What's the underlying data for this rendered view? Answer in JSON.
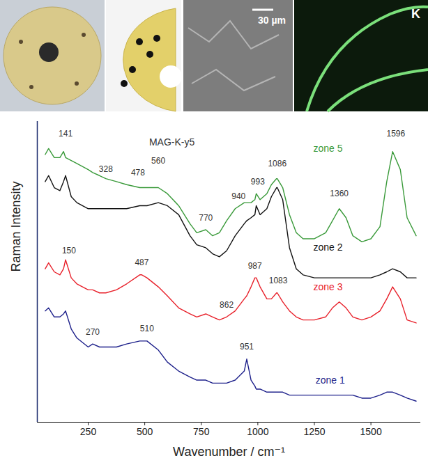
{
  "chart_data": {
    "type": "line",
    "x_label": "Wavenumber / cm⁻¹",
    "y_label": "Raman Intensity",
    "xlim": [
      25,
      1720
    ],
    "xticks": [
      250,
      500,
      750,
      1000,
      1250,
      1500
    ],
    "ylim": [
      0,
      100
    ],
    "tick_labels": "x",
    "grid": false,
    "image_labels": [
      "30 µm",
      "K"
    ],
    "x": [
      60,
      75,
      100,
      125,
      141,
      150,
      175,
      200,
      250,
      270,
      300,
      328,
      375,
      420,
      478,
      487,
      510,
      560,
      600,
      650,
      700,
      730,
      770,
      800,
      830,
      862,
      900,
      940,
      951,
      970,
      987,
      993,
      1010,
      1040,
      1060,
      1083,
      1086,
      1110,
      1140,
      1170,
      1200,
      1250,
      1300,
      1330,
      1360,
      1390,
      1420,
      1460,
      1500,
      1540,
      1570,
      1596,
      1630,
      1660,
      1700
    ],
    "series": [
      {
        "name": "zone 5",
        "color": "#3a9a3a",
        "values": [
          89,
          91,
          88,
          88,
          90,
          88,
          87,
          86,
          84,
          83,
          82,
          81,
          80,
          79,
          78,
          78,
          78,
          78,
          76,
          72,
          66,
          63,
          64,
          62,
          63,
          67,
          71,
          73,
          73,
          73,
          74,
          76,
          74,
          76,
          79,
          81,
          81,
          78,
          69,
          63,
          61,
          61,
          63,
          67,
          71,
          68,
          62,
          60,
          61,
          65,
          80,
          90,
          84,
          68,
          62
        ]
      },
      {
        "name": "zone 2",
        "color": "#111111",
        "values": [
          80,
          82,
          78,
          77,
          80,
          82,
          75,
          73,
          71,
          71,
          71,
          71,
          71,
          71,
          72,
          72,
          72,
          73,
          72,
          69,
          62,
          59,
          58,
          56,
          55,
          57,
          62,
          66,
          67,
          68,
          69,
          72,
          69,
          71,
          75,
          78,
          78,
          74,
          58,
          51,
          49,
          48,
          48,
          48,
          48,
          48,
          48,
          48,
          48,
          49,
          50,
          51,
          50,
          48,
          48
        ]
      },
      {
        "name": "zone 3",
        "color": "#e8202a",
        "values": [
          51,
          53,
          50,
          49,
          51,
          54,
          48,
          46,
          44,
          44,
          43,
          43,
          44,
          46,
          49,
          49,
          48,
          45,
          42,
          38,
          36,
          35,
          36,
          35,
          34,
          35,
          37,
          41,
          42,
          45,
          48,
          48,
          45,
          41,
          41,
          43,
          43,
          40,
          37,
          35,
          34,
          34,
          35,
          38,
          40,
          38,
          35,
          34,
          35,
          37,
          41,
          45,
          41,
          34,
          33
        ]
      },
      {
        "name": "zone 1",
        "color": "#1c1f8a",
        "values": [
          37,
          38,
          35,
          35,
          36,
          37,
          31,
          28,
          25,
          26,
          25,
          25,
          25,
          26,
          27,
          27,
          27,
          24,
          20,
          17,
          15,
          14,
          14,
          13,
          13,
          13,
          14,
          17,
          21,
          14,
          12,
          11,
          11,
          10,
          10,
          10,
          10,
          10,
          9,
          9,
          9,
          9,
          9,
          9,
          9,
          9,
          9,
          8,
          8,
          9,
          10,
          10,
          9,
          8,
          7
        ]
      }
    ],
    "annotations": [
      {
        "text": "MAG-K-y5",
        "x": 620,
        "y": 93,
        "color": "#333333"
      },
      {
        "text": "zone 5",
        "x": 1310,
        "y": 91,
        "color": "#3a9a3a"
      },
      {
        "text": "141",
        "x": 150,
        "y": 96,
        "color": "#333333"
      },
      {
        "text": "328",
        "x": 328,
        "y": 84,
        "color": "#333333"
      },
      {
        "text": "478",
        "x": 470,
        "y": 83,
        "color": "#333333"
      },
      {
        "text": "560",
        "x": 560,
        "y": 87,
        "color": "#333333"
      },
      {
        "text": "770",
        "x": 770,
        "y": 68,
        "color": "#333333"
      },
      {
        "text": "940",
        "x": 915,
        "y": 75,
        "color": "#333333"
      },
      {
        "text": "993",
        "x": 1000,
        "y": 80,
        "color": "#333333"
      },
      {
        "text": "1086",
        "x": 1086,
        "y": 86,
        "color": "#333333"
      },
      {
        "text": "1360",
        "x": 1360,
        "y": 76,
        "color": "#333333"
      },
      {
        "text": "1596",
        "x": 1610,
        "y": 96,
        "color": "#333333"
      },
      {
        "text": "zone 2",
        "x": 1310,
        "y": 58,
        "color": "#111111"
      },
      {
        "text": "150",
        "x": 165,
        "y": 57,
        "color": "#333333"
      },
      {
        "text": "487",
        "x": 487,
        "y": 53,
        "color": "#333333"
      },
      {
        "text": "862",
        "x": 862,
        "y": 39,
        "color": "#333333"
      },
      {
        "text": "987",
        "x": 987,
        "y": 52,
        "color": "#333333"
      },
      {
        "text": "1083",
        "x": 1090,
        "y": 47,
        "color": "#333333"
      },
      {
        "text": "zone 3",
        "x": 1310,
        "y": 45,
        "color": "#e8202a"
      },
      {
        "text": "270",
        "x": 270,
        "y": 30,
        "color": "#333333"
      },
      {
        "text": "510",
        "x": 510,
        "y": 31,
        "color": "#333333"
      },
      {
        "text": "951",
        "x": 951,
        "y": 25,
        "color": "#333333"
      },
      {
        "text": "zone 1",
        "x": 1320,
        "y": 14,
        "color": "#1c1f8a"
      }
    ]
  }
}
